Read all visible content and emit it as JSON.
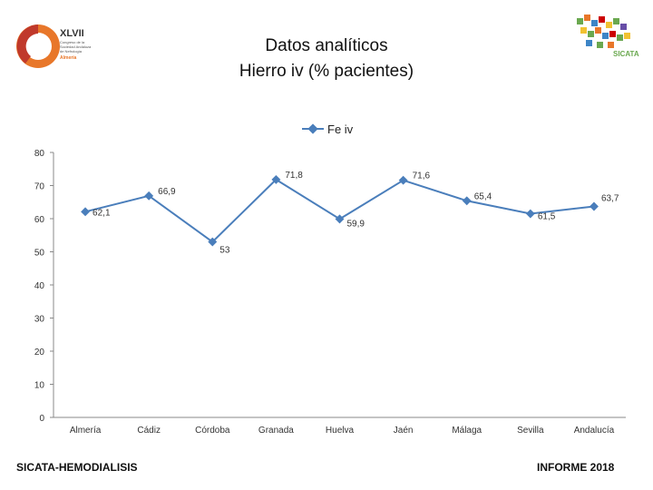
{
  "header": {
    "title_line1": "Datos analíticos",
    "title_line2": "Hierro iv (% pacientes)"
  },
  "logos": {
    "left": {
      "icon": "congress-logo",
      "roman": "XLVII",
      "text_lines": [
        "Congreso de la",
        "Sociedad Andaluza",
        "de Nefrología",
        "Almería"
      ],
      "accent_color": "#e8772a",
      "ring_color": "#c0392b"
    },
    "right": {
      "icon": "sicata-logo",
      "text": "SICATA",
      "accent_color": "#6aa84f"
    }
  },
  "footer": {
    "left": "SICATA-HEMODIALISIS",
    "right": "INFORME 2018"
  },
  "chart_data": {
    "type": "line",
    "categories": [
      "Almería",
      "Cádiz",
      "Córdoba",
      "Granada",
      "Huelva",
      "Jaén",
      "Málaga",
      "Sevilla",
      "Andalucía"
    ],
    "series": [
      {
        "name": "Fe iv",
        "values": [
          62.1,
          66.9,
          53,
          71.8,
          59.9,
          71.6,
          65.4,
          61.5,
          63.7
        ],
        "color": "#4a7ebb"
      }
    ],
    "data_labels": [
      "62,1",
      "66,9",
      "53",
      "71,8",
      "59,9",
      "71,6",
      "65,4",
      "61,5",
      "63,7"
    ],
    "yticks": [
      "0",
      "10",
      "20",
      "30",
      "40",
      "50",
      "60",
      "70",
      "80"
    ],
    "ylim": [
      0,
      80
    ],
    "grid": false,
    "legend_position": "top"
  }
}
